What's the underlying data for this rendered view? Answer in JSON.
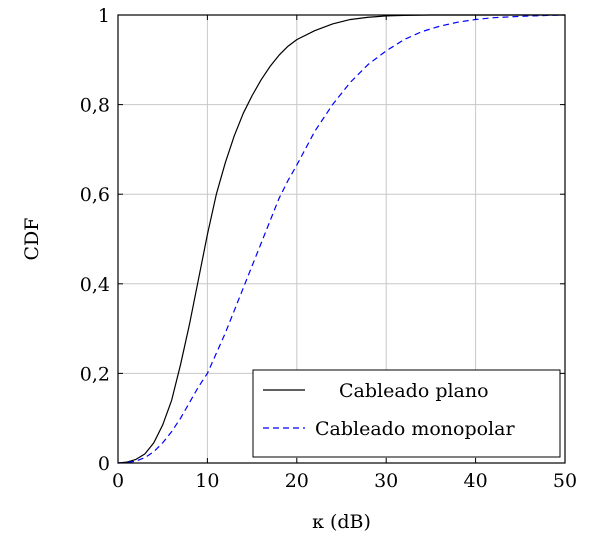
{
  "chart_data": {
    "type": "line",
    "title": "",
    "xlabel": "κ (dB)",
    "ylabel": "CDF",
    "xlim": [
      0,
      50
    ],
    "ylim": [
      0,
      1
    ],
    "xticks": [
      0,
      10,
      20,
      30,
      40,
      50
    ],
    "xtick_labels": [
      "0",
      "10",
      "20",
      "30",
      "40",
      "50"
    ],
    "yticks": [
      0,
      0.2,
      0.4,
      0.6,
      0.8,
      1
    ],
    "ytick_labels": [
      "0",
      "0,2",
      "0,4",
      "0,6",
      "0,8",
      "1"
    ],
    "grid": true,
    "legend_position": "bottom-right",
    "series": [
      {
        "name": "Cableado plano",
        "color": "#000000",
        "dash": "solid",
        "x": [
          0,
          1,
          2,
          3,
          4,
          5,
          6,
          7,
          8,
          9,
          10,
          11,
          12,
          13,
          14,
          15,
          16,
          17,
          18,
          19,
          20,
          22,
          24,
          26,
          28,
          30,
          32,
          35,
          40,
          45,
          50
        ],
        "y": [
          0,
          0.002,
          0.008,
          0.02,
          0.045,
          0.085,
          0.14,
          0.22,
          0.31,
          0.41,
          0.51,
          0.6,
          0.67,
          0.73,
          0.78,
          0.82,
          0.855,
          0.885,
          0.91,
          0.93,
          0.945,
          0.965,
          0.98,
          0.99,
          0.995,
          0.998,
          0.999,
          1.0,
          1.0,
          1.0,
          1.0
        ]
      },
      {
        "name": "Cableado monopolar",
        "color": "#0000ff",
        "dash": "dashed",
        "x": [
          0,
          1,
          2,
          3,
          4,
          5,
          6,
          7,
          8,
          9,
          10,
          11,
          12,
          13,
          14,
          15,
          16,
          17,
          18,
          19,
          20,
          22,
          24,
          26,
          28,
          30,
          32,
          34,
          36,
          38,
          40,
          42,
          45,
          48,
          50
        ],
        "y": [
          0,
          0.001,
          0.004,
          0.012,
          0.025,
          0.045,
          0.07,
          0.1,
          0.135,
          0.17,
          0.2,
          0.245,
          0.29,
          0.34,
          0.39,
          0.44,
          0.49,
          0.54,
          0.59,
          0.63,
          0.665,
          0.74,
          0.8,
          0.85,
          0.89,
          0.92,
          0.945,
          0.963,
          0.975,
          0.984,
          0.99,
          0.994,
          0.997,
          0.999,
          1.0
        ]
      }
    ]
  }
}
